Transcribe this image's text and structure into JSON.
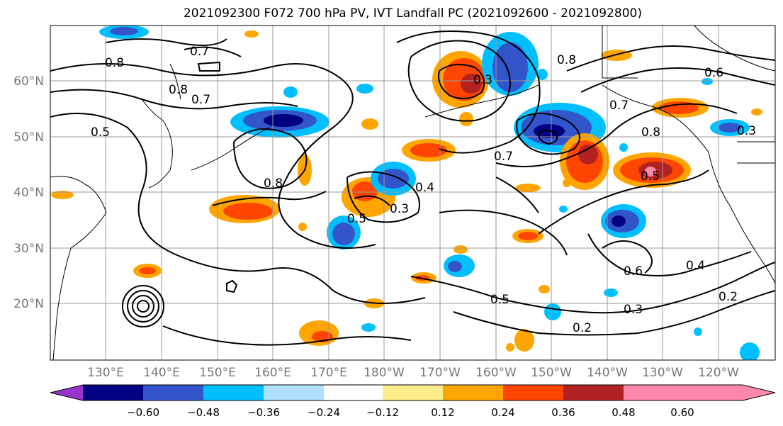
{
  "title": "2021092300 F072 700 hPa PV, IVT Landfall PC (2021092600 - 2021092800)",
  "lat_labels": [
    "60°N",
    "50°N",
    "40°N",
    "30°N",
    "20°N"
  ],
  "lon_labels": [
    "130°E",
    "140°E",
    "150°E",
    "160°E",
    "170°E",
    "180°W",
    "170°W",
    "160°W",
    "150°W",
    "140°W",
    "130°W",
    "120°W"
  ],
  "colorbar": {
    "colors": [
      "#9933cc",
      "#000080",
      "#3355cc",
      "#00bfff",
      "#b0e0ff",
      "#ffffff",
      "#ffec8a",
      "#ffa500",
      "#ff4500",
      "#b22222",
      "#ff88aa"
    ],
    "tick_labels": [
      "−0.60",
      "−0.48",
      "−0.36",
      "−0.24",
      "−0.12",
      "0.12",
      "0.24",
      "0.36",
      "0.48",
      "0.60"
    ]
  },
  "contour_labels": [
    "0.8",
    "0.7",
    "0.8",
    "0.7",
    "0.5",
    "0.8",
    "0.3",
    "0.4",
    "0.3",
    "0.5",
    "0.7",
    "0.8",
    "0.6",
    "0.7",
    "0.8",
    "0.5",
    "0.3",
    "0.6",
    "0.4",
    "0.5",
    "0.3",
    "0.2",
    "0.2"
  ]
}
